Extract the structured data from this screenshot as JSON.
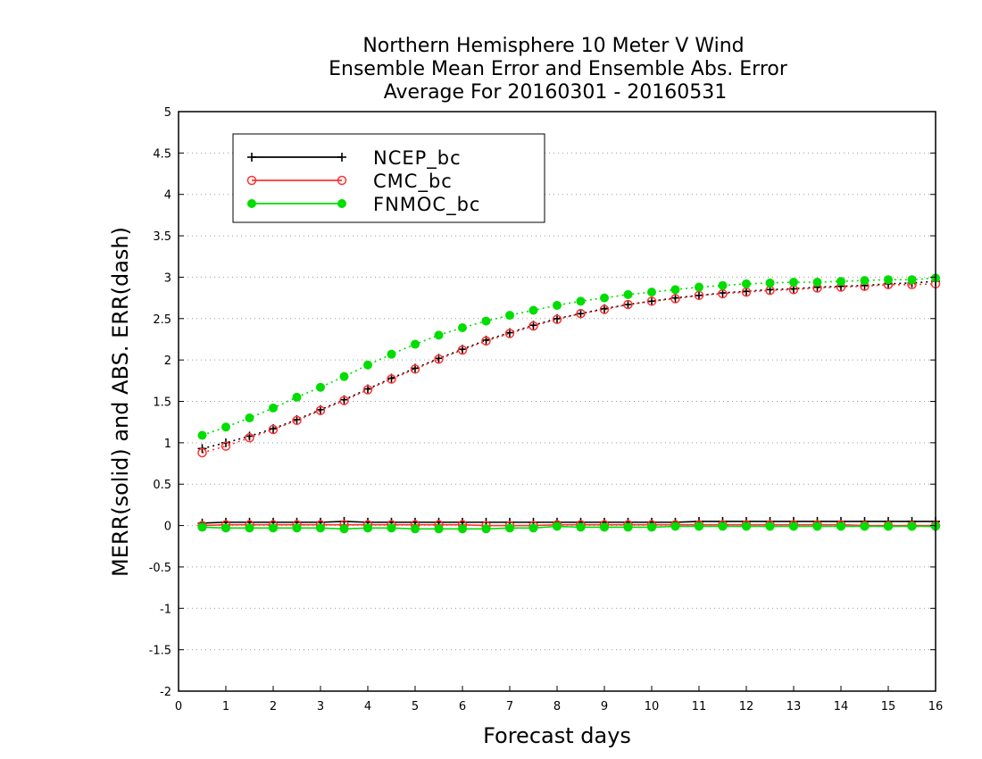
{
  "chart_data": {
    "type": "line",
    "title_lines": [
      "Northern Hemisphere 10 Meter V Wind",
      "Ensemble Mean Error and Ensemble Abs. Error",
      "Average For 20160301 - 20160531"
    ],
    "xlabel": "Forecast days",
    "ylabel": "MERR(solid) and ABS. ERR(dash)",
    "xlim": [
      0,
      16
    ],
    "ylim": [
      -2,
      5
    ],
    "xticks": [
      0,
      1,
      2,
      3,
      4,
      5,
      6,
      7,
      8,
      9,
      10,
      11,
      12,
      13,
      14,
      15,
      16
    ],
    "yticks": [
      -2,
      -1.5,
      -1,
      -0.5,
      0,
      0.5,
      1,
      1.5,
      2,
      2.5,
      3,
      3.5,
      4,
      4.5,
      5
    ],
    "ytick_labels": [
      "-2",
      "-1.5",
      "-1",
      "-0.5",
      "0",
      "0.5",
      "1",
      "1.5",
      "2",
      "2.5",
      "3",
      "3.5",
      "4",
      "4.5",
      "5"
    ],
    "grid": "horizontal dotted",
    "legend_position": "top-left",
    "x": [
      0.5,
      1,
      1.5,
      2,
      2.5,
      3,
      3.5,
      4,
      4.5,
      5,
      5.5,
      6,
      6.5,
      7,
      7.5,
      8,
      8.5,
      9,
      9.5,
      10,
      10.5,
      11,
      11.5,
      12,
      12.5,
      13,
      13.5,
      14,
      14.5,
      15,
      15.5,
      16
    ],
    "series": [
      {
        "name": "NCEP_bc",
        "color": "#000000",
        "marker": "plus",
        "merr": [
          0.03,
          0.04,
          0.04,
          0.04,
          0.04,
          0.04,
          0.05,
          0.04,
          0.04,
          0.04,
          0.04,
          0.04,
          0.04,
          0.04,
          0.04,
          0.04,
          0.04,
          0.04,
          0.04,
          0.04,
          0.04,
          0.05,
          0.05,
          0.05,
          0.05,
          0.05,
          0.05,
          0.05,
          0.05,
          0.05,
          0.05,
          0.05
        ],
        "abs_err": [
          0.93,
          1.0,
          1.08,
          1.17,
          1.28,
          1.4,
          1.52,
          1.65,
          1.78,
          1.9,
          2.02,
          2.13,
          2.24,
          2.33,
          2.42,
          2.5,
          2.56,
          2.62,
          2.67,
          2.71,
          2.75,
          2.78,
          2.81,
          2.83,
          2.85,
          2.86,
          2.88,
          2.89,
          2.9,
          2.92,
          2.93,
          2.95
        ]
      },
      {
        "name": "CMC_bc",
        "color": "#ff3333",
        "marker": "open-circle",
        "merr": [
          0.0,
          0.01,
          0.01,
          0.01,
          0.01,
          0.01,
          0.01,
          0.01,
          0.01,
          0.01,
          0.01,
          0.01,
          0.0,
          0.0,
          0.0,
          0.01,
          0.01,
          0.01,
          0.01,
          0.01,
          0.01,
          0.01,
          0.01,
          0.01,
          0.01,
          0.01,
          0.01,
          0.01,
          0.0,
          0.0,
          0.0,
          0.0
        ],
        "abs_err": [
          0.88,
          0.96,
          1.06,
          1.16,
          1.27,
          1.39,
          1.51,
          1.64,
          1.77,
          1.89,
          2.01,
          2.12,
          2.23,
          2.32,
          2.41,
          2.49,
          2.56,
          2.61,
          2.67,
          2.71,
          2.74,
          2.78,
          2.8,
          2.82,
          2.84,
          2.85,
          2.87,
          2.88,
          2.89,
          2.91,
          2.91,
          2.92
        ]
      },
      {
        "name": "FNMOC_bc",
        "color": "#00dd00",
        "marker": "filled-circle",
        "merr": [
          -0.02,
          -0.03,
          -0.03,
          -0.03,
          -0.03,
          -0.03,
          -0.04,
          -0.03,
          -0.03,
          -0.04,
          -0.04,
          -0.04,
          -0.04,
          -0.03,
          -0.03,
          -0.01,
          -0.02,
          -0.02,
          -0.02,
          -0.02,
          -0.01,
          -0.01,
          -0.01,
          -0.01,
          -0.01,
          -0.01,
          -0.01,
          -0.01,
          -0.01,
          -0.01,
          -0.01,
          -0.01
        ],
        "abs_err": [
          1.09,
          1.19,
          1.3,
          1.42,
          1.55,
          1.67,
          1.8,
          1.94,
          2.07,
          2.19,
          2.3,
          2.39,
          2.47,
          2.54,
          2.6,
          2.66,
          2.71,
          2.75,
          2.79,
          2.82,
          2.85,
          2.88,
          2.9,
          2.92,
          2.93,
          2.94,
          2.94,
          2.95,
          2.96,
          2.97,
          2.97,
          2.99
        ]
      }
    ]
  }
}
